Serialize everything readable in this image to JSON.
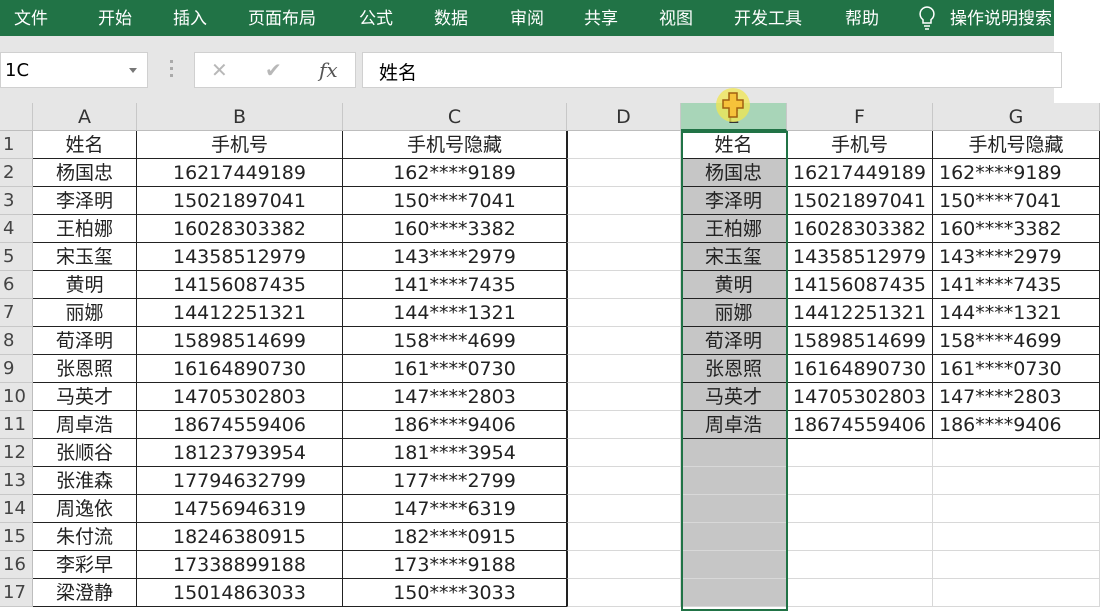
{
  "ribbon": {
    "tabs": [
      "文件",
      "开始",
      "插入",
      "页面布局",
      "公式",
      "数据",
      "审阅",
      "共享",
      "视图",
      "开发工具",
      "帮助"
    ],
    "tell_me": "操作说明搜索",
    "bulb_icon": "lightbulb-icon"
  },
  "formula_bar": {
    "name_box": "1C",
    "cancel": "✕",
    "enter": "✔",
    "fx": "fx",
    "value": "姓名"
  },
  "columns": [
    "A",
    "B",
    "C",
    "D",
    "E",
    "F",
    "G"
  ],
  "rows": [
    "1",
    "2",
    "3",
    "4",
    "5",
    "6",
    "7",
    "8",
    "9",
    "10",
    "11",
    "12",
    "13",
    "14",
    "15",
    "16",
    "17"
  ],
  "left_table": {
    "headers": [
      "姓名",
      "手机号",
      "手机号隐藏"
    ],
    "rows": [
      [
        "杨国忠",
        "16217449189",
        "162****9189"
      ],
      [
        "李泽明",
        "15021897041",
        "150****7041"
      ],
      [
        "王柏娜",
        "16028303382",
        "160****3382"
      ],
      [
        "宋玉玺",
        "14358512979",
        "143****2979"
      ],
      [
        "黄明",
        "14156087435",
        "141****7435"
      ],
      [
        "丽娜",
        "14412251321",
        "144****1321"
      ],
      [
        "荀泽明",
        "15898514699",
        "158****4699"
      ],
      [
        "张恩照",
        "16164890730",
        "161****0730"
      ],
      [
        "马英才",
        "14705302803",
        "147****2803"
      ],
      [
        "周卓浩",
        "18674559406",
        "186****9406"
      ],
      [
        "张顺谷",
        "18123793954",
        "181****3954"
      ],
      [
        "张淮森",
        "17794632799",
        "177****2799"
      ],
      [
        "周逸依",
        "14756946319",
        "147****6319"
      ],
      [
        "朱付流",
        "18246380915",
        "182****0915"
      ],
      [
        "李彩早",
        "17338899188",
        "173****9188"
      ],
      [
        "梁澄静",
        "15014863033",
        "150****3033"
      ]
    ]
  },
  "right_table": {
    "headers": [
      "姓名",
      "手机号",
      "手机号隐藏"
    ],
    "rows": [
      [
        "杨国忠",
        "16217449189",
        "162****9189"
      ],
      [
        "李泽明",
        "15021897041",
        "150****7041"
      ],
      [
        "王柏娜",
        "16028303382",
        "160****3382"
      ],
      [
        "宋玉玺",
        "14358512979",
        "143****2979"
      ],
      [
        "黄明",
        "14156087435",
        "141****7435"
      ],
      [
        "丽娜",
        "14412251321",
        "144****1321"
      ],
      [
        "荀泽明",
        "15898514699",
        "158****4699"
      ],
      [
        "张恩照",
        "16164890730",
        "161****0730"
      ],
      [
        "马英才",
        "14705302803",
        "147****2803"
      ],
      [
        "周卓浩",
        "18674559406",
        "186****9406"
      ]
    ]
  },
  "colors": {
    "ribbon": "#217346",
    "selection": "#217346",
    "selected_fill": "#c6c6c6",
    "selected_header": "#a8d5b8"
  }
}
